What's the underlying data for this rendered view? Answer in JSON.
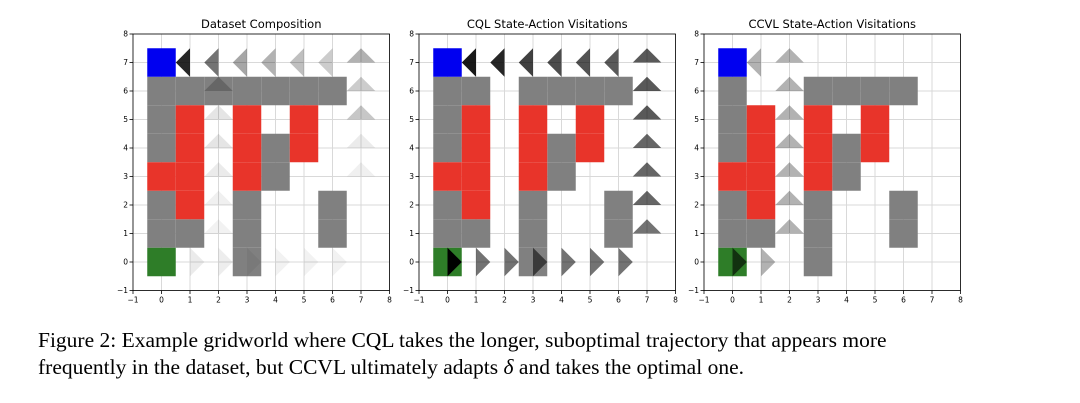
{
  "chart_data": [
    {
      "type": "heatmap",
      "title": "Dataset Composition",
      "xlim": [
        -1,
        8
      ],
      "ylim": [
        -1,
        8
      ],
      "xticks": [
        "-1",
        "0",
        "1",
        "2",
        "3",
        "4",
        "5",
        "6",
        "7",
        "8"
      ],
      "yticks": [
        "-1",
        "0",
        "1",
        "2",
        "3",
        "4",
        "5",
        "6",
        "7",
        "8"
      ],
      "walls": [
        [
          0,
          6
        ],
        [
          1,
          6
        ],
        [
          2,
          6
        ],
        [
          3,
          6
        ],
        [
          4,
          6
        ],
        [
          5,
          6
        ],
        [
          6,
          6
        ],
        [
          0,
          5
        ],
        [
          0,
          4
        ],
        [
          0,
          2
        ],
        [
          0,
          1
        ],
        [
          1,
          1
        ],
        [
          3,
          1
        ],
        [
          3,
          2
        ],
        [
          4,
          3
        ],
        [
          4,
          4
        ],
        [
          3,
          0
        ],
        [
          6,
          1
        ],
        [
          6,
          2
        ]
      ],
      "lava": [
        [
          1,
          5
        ],
        [
          1,
          4
        ],
        [
          1,
          3
        ],
        [
          0,
          3
        ],
        [
          1,
          2
        ],
        [
          3,
          5
        ],
        [
          3,
          4
        ],
        [
          3,
          3
        ],
        [
          5,
          5
        ],
        [
          5,
          4
        ]
      ],
      "start": [
        0,
        7
      ],
      "goal": [
        0,
        0
      ],
      "colors": {
        "wall": "#808080",
        "lava": "#e8342a",
        "start": "#0000f0",
        "goal": "#2e7d28",
        "arrow": "#000000",
        "grid": "#d9d9d9"
      },
      "visits": [
        {
          "x": 1,
          "y": 7,
          "dir": "left",
          "v": 0.85
        },
        {
          "x": 2,
          "y": 7,
          "dir": "left",
          "v": 0.55
        },
        {
          "x": 3,
          "y": 7,
          "dir": "left",
          "v": 0.35
        },
        {
          "x": 4,
          "y": 7,
          "dir": "left",
          "v": 0.3
        },
        {
          "x": 5,
          "y": 7,
          "dir": "left",
          "v": 0.25
        },
        {
          "x": 6,
          "y": 7,
          "dir": "left",
          "v": 0.2
        },
        {
          "x": 7,
          "y": 7,
          "dir": "up",
          "v": 0.3
        },
        {
          "x": 2,
          "y": 6,
          "dir": "up",
          "v": 0.2
        },
        {
          "x": 7,
          "y": 6,
          "dir": "up",
          "v": 0.2
        },
        {
          "x": 2,
          "y": 5,
          "dir": "up",
          "v": 0.1
        },
        {
          "x": 7,
          "y": 5,
          "dir": "up",
          "v": 0.22
        },
        {
          "x": 2,
          "y": 4,
          "dir": "up",
          "v": 0.1
        },
        {
          "x": 7,
          "y": 4,
          "dir": "up",
          "v": 0.08
        },
        {
          "x": 2,
          "y": 3,
          "dir": "up",
          "v": 0.08
        },
        {
          "x": 7,
          "y": 3,
          "dir": "up",
          "v": 0.06
        },
        {
          "x": 2,
          "y": 2,
          "dir": "up",
          "v": 0.06
        },
        {
          "x": 2,
          "y": 1,
          "dir": "up",
          "v": 0.05
        },
        {
          "x": 1,
          "y": 0,
          "dir": "right",
          "v": 0.08
        },
        {
          "x": 2,
          "y": 0,
          "dir": "right",
          "v": 0.07
        },
        {
          "x": 3,
          "y": 0,
          "dir": "right",
          "v": 0.05
        },
        {
          "x": 4,
          "y": 0,
          "dir": "right",
          "v": 0.05
        },
        {
          "x": 5,
          "y": 0,
          "dir": "right",
          "v": 0.05
        },
        {
          "x": 6,
          "y": 0,
          "dir": "right",
          "v": 0.05
        }
      ]
    },
    {
      "type": "heatmap",
      "title": "CQL State-Action Visitations",
      "xlim": [
        -1,
        8
      ],
      "ylim": [
        -1,
        8
      ],
      "xticks": [
        "-1",
        "0",
        "1",
        "2",
        "3",
        "4",
        "5",
        "6",
        "7",
        "8"
      ],
      "yticks": [
        "-1",
        "0",
        "1",
        "2",
        "3",
        "4",
        "5",
        "6",
        "7",
        "8"
      ],
      "walls": [
        [
          0,
          6
        ],
        [
          1,
          6
        ],
        [
          3,
          6
        ],
        [
          4,
          6
        ],
        [
          5,
          6
        ],
        [
          6,
          6
        ],
        [
          0,
          5
        ],
        [
          0,
          4
        ],
        [
          0,
          2
        ],
        [
          0,
          1
        ],
        [
          1,
          1
        ],
        [
          3,
          0
        ],
        [
          3,
          1
        ],
        [
          3,
          2
        ],
        [
          4,
          3
        ],
        [
          4,
          4
        ],
        [
          6,
          1
        ],
        [
          6,
          2
        ]
      ],
      "lava": [
        [
          1,
          5
        ],
        [
          1,
          4
        ],
        [
          1,
          3
        ],
        [
          0,
          3
        ],
        [
          1,
          2
        ],
        [
          3,
          5
        ],
        [
          3,
          4
        ],
        [
          3,
          3
        ],
        [
          5,
          5
        ],
        [
          5,
          4
        ]
      ],
      "start": [
        0,
        7
      ],
      "goal": [
        0,
        0
      ],
      "colors": {
        "wall": "#808080",
        "lava": "#e8342a",
        "start": "#0000f0",
        "goal": "#2e7d28",
        "arrow": "#000000",
        "grid": "#d9d9d9"
      },
      "visits": [
        {
          "x": 1,
          "y": 7,
          "dir": "left",
          "v": 0.9
        },
        {
          "x": 2,
          "y": 7,
          "dir": "left",
          "v": 0.85
        },
        {
          "x": 3,
          "y": 7,
          "dir": "left",
          "v": 0.75
        },
        {
          "x": 4,
          "y": 7,
          "dir": "left",
          "v": 0.7
        },
        {
          "x": 5,
          "y": 7,
          "dir": "left",
          "v": 0.68
        },
        {
          "x": 6,
          "y": 7,
          "dir": "left",
          "v": 0.65
        },
        {
          "x": 7,
          "y": 7,
          "dir": "up",
          "v": 0.65
        },
        {
          "x": 7,
          "y": 6,
          "dir": "up",
          "v": 0.65
        },
        {
          "x": 7,
          "y": 5,
          "dir": "up",
          "v": 0.65
        },
        {
          "x": 7,
          "y": 4,
          "dir": "up",
          "v": 0.6
        },
        {
          "x": 7,
          "y": 3,
          "dir": "up",
          "v": 0.6
        },
        {
          "x": 7,
          "y": 2,
          "dir": "up",
          "v": 0.6
        },
        {
          "x": 7,
          "y": 1,
          "dir": "up",
          "v": 0.55
        },
        {
          "x": 0,
          "y": 0,
          "dir": "right",
          "v": 1.0
        },
        {
          "x": 1,
          "y": 0,
          "dir": "right",
          "v": 0.55
        },
        {
          "x": 2,
          "y": 0,
          "dir": "right",
          "v": 0.55
        },
        {
          "x": 3,
          "y": 0,
          "dir": "right",
          "v": 0.55
        },
        {
          "x": 4,
          "y": 0,
          "dir": "right",
          "v": 0.55
        },
        {
          "x": 5,
          "y": 0,
          "dir": "right",
          "v": 0.55
        },
        {
          "x": 6,
          "y": 0,
          "dir": "right",
          "v": 0.55
        }
      ]
    },
    {
      "type": "heatmap",
      "title": "CCVL State-Action Visitations",
      "xlim": [
        -1,
        8
      ],
      "ylim": [
        -1,
        8
      ],
      "xticks": [
        "-1",
        "0",
        "1",
        "2",
        "3",
        "4",
        "5",
        "6",
        "7",
        "8"
      ],
      "yticks": [
        "-1",
        "0",
        "1",
        "2",
        "3",
        "4",
        "5",
        "6",
        "7",
        "8"
      ],
      "walls": [
        [
          0,
          6
        ],
        [
          3,
          6
        ],
        [
          4,
          6
        ],
        [
          5,
          6
        ],
        [
          6,
          6
        ],
        [
          0,
          5
        ],
        [
          0,
          4
        ],
        [
          0,
          2
        ],
        [
          0,
          1
        ],
        [
          1,
          1
        ],
        [
          3,
          0
        ],
        [
          3,
          1
        ],
        [
          3,
          2
        ],
        [
          4,
          3
        ],
        [
          4,
          4
        ],
        [
          6,
          1
        ],
        [
          6,
          2
        ]
      ],
      "lava": [
        [
          1,
          5
        ],
        [
          1,
          4
        ],
        [
          1,
          3
        ],
        [
          0,
          3
        ],
        [
          1,
          2
        ],
        [
          3,
          5
        ],
        [
          3,
          4
        ],
        [
          3,
          3
        ],
        [
          5,
          5
        ],
        [
          5,
          4
        ]
      ],
      "start": [
        0,
        7
      ],
      "goal": [
        0,
        0
      ],
      "colors": {
        "wall": "#808080",
        "lava": "#e8342a",
        "start": "#0000f0",
        "goal": "#2e7d28",
        "arrow": "#000000",
        "grid": "#d9d9d9"
      },
      "visits": [
        {
          "x": 1,
          "y": 7,
          "dir": "left",
          "v": 0.3
        },
        {
          "x": 2,
          "y": 7,
          "dir": "up",
          "v": 0.3
        },
        {
          "x": 2,
          "y": 6,
          "dir": "up",
          "v": 0.3
        },
        {
          "x": 2,
          "y": 5,
          "dir": "up",
          "v": 0.3
        },
        {
          "x": 2,
          "y": 4,
          "dir": "up",
          "v": 0.3
        },
        {
          "x": 2,
          "y": 3,
          "dir": "up",
          "v": 0.3
        },
        {
          "x": 2,
          "y": 2,
          "dir": "up",
          "v": 0.3
        },
        {
          "x": 2,
          "y": 1,
          "dir": "up",
          "v": 0.3
        },
        {
          "x": 0,
          "y": 0,
          "dir": "right",
          "v": 0.6
        },
        {
          "x": 1,
          "y": 0,
          "dir": "right",
          "v": 0.3
        }
      ]
    }
  ],
  "caption": {
    "text1": "Figure 2: Example gridworld where CQL takes the longer, suboptimal trajectory that appears more",
    "text2a": "frequently in the dataset, but CCVL ultimately adapts ",
    "delta": "δ",
    "text2b": " and takes the optimal one."
  }
}
